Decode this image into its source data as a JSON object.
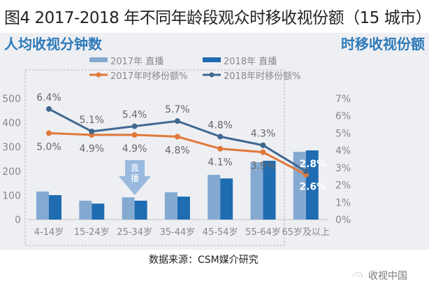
{
  "title": "图4 2017-2018 年不同年龄段观众时移收视份额（15 城市）",
  "source": "数据来源：CSM媒介研究",
  "watermark": "收视中国",
  "chart_data": {
    "type": "bar+line",
    "title": "图4 2017-2018 年不同年龄段观众时移收视份额（15 城市）",
    "ylabel_left": "人均收视分钟数",
    "ylabel_right": "时移收视份额",
    "annotation": "直播",
    "categories": [
      "4-14岁",
      "15-24岁",
      "25-34岁",
      "35-44岁",
      "45-54岁",
      "55-64岁",
      "65岁及以上"
    ],
    "left_axis": {
      "min": 0,
      "max": 500,
      "ticks": [
        "0",
        "100",
        "200",
        "300",
        "400",
        "500"
      ]
    },
    "right_axis": {
      "min": 0,
      "max": 7,
      "ticks": [
        "0%",
        "1%",
        "2%",
        "3%",
        "4%",
        "5%",
        "6%",
        "7%"
      ]
    },
    "grid": false,
    "legend_position": "top",
    "bar_series": [
      {
        "name": "2017年 直播",
        "color": "#85aad2",
        "values": [
          116,
          78,
          92,
          113,
          185,
          237,
          280
        ]
      },
      {
        "name": "2018年 直播",
        "color": "#1f6cb2",
        "values": [
          101,
          66,
          78,
          95,
          170,
          243,
          286
        ]
      }
    ],
    "line_series": [
      {
        "name": "2017年时移份额%",
        "color": "#e0783a",
        "values": [
          5.0,
          4.9,
          4.9,
          4.8,
          4.1,
          3.9,
          2.6
        ],
        "labels": [
          "5.0%",
          "4.9%",
          "4.9%",
          "4.8%",
          "4.1%",
          "3.9%",
          "2.6%"
        ]
      },
      {
        "name": "2018年时移份额%",
        "color": "#3f6891",
        "values": [
          6.4,
          5.1,
          5.4,
          5.7,
          4.8,
          4.3,
          2.8
        ],
        "labels": [
          "6.4%",
          "5.1%",
          "5.4%",
          "5.7%",
          "4.8%",
          "4.3%",
          "2.8%"
        ]
      }
    ],
    "colors": {
      "axis_title": "#2e7ab8",
      "panel_bg": "#eeeff3",
      "arrow": "#8fb4dc"
    }
  }
}
